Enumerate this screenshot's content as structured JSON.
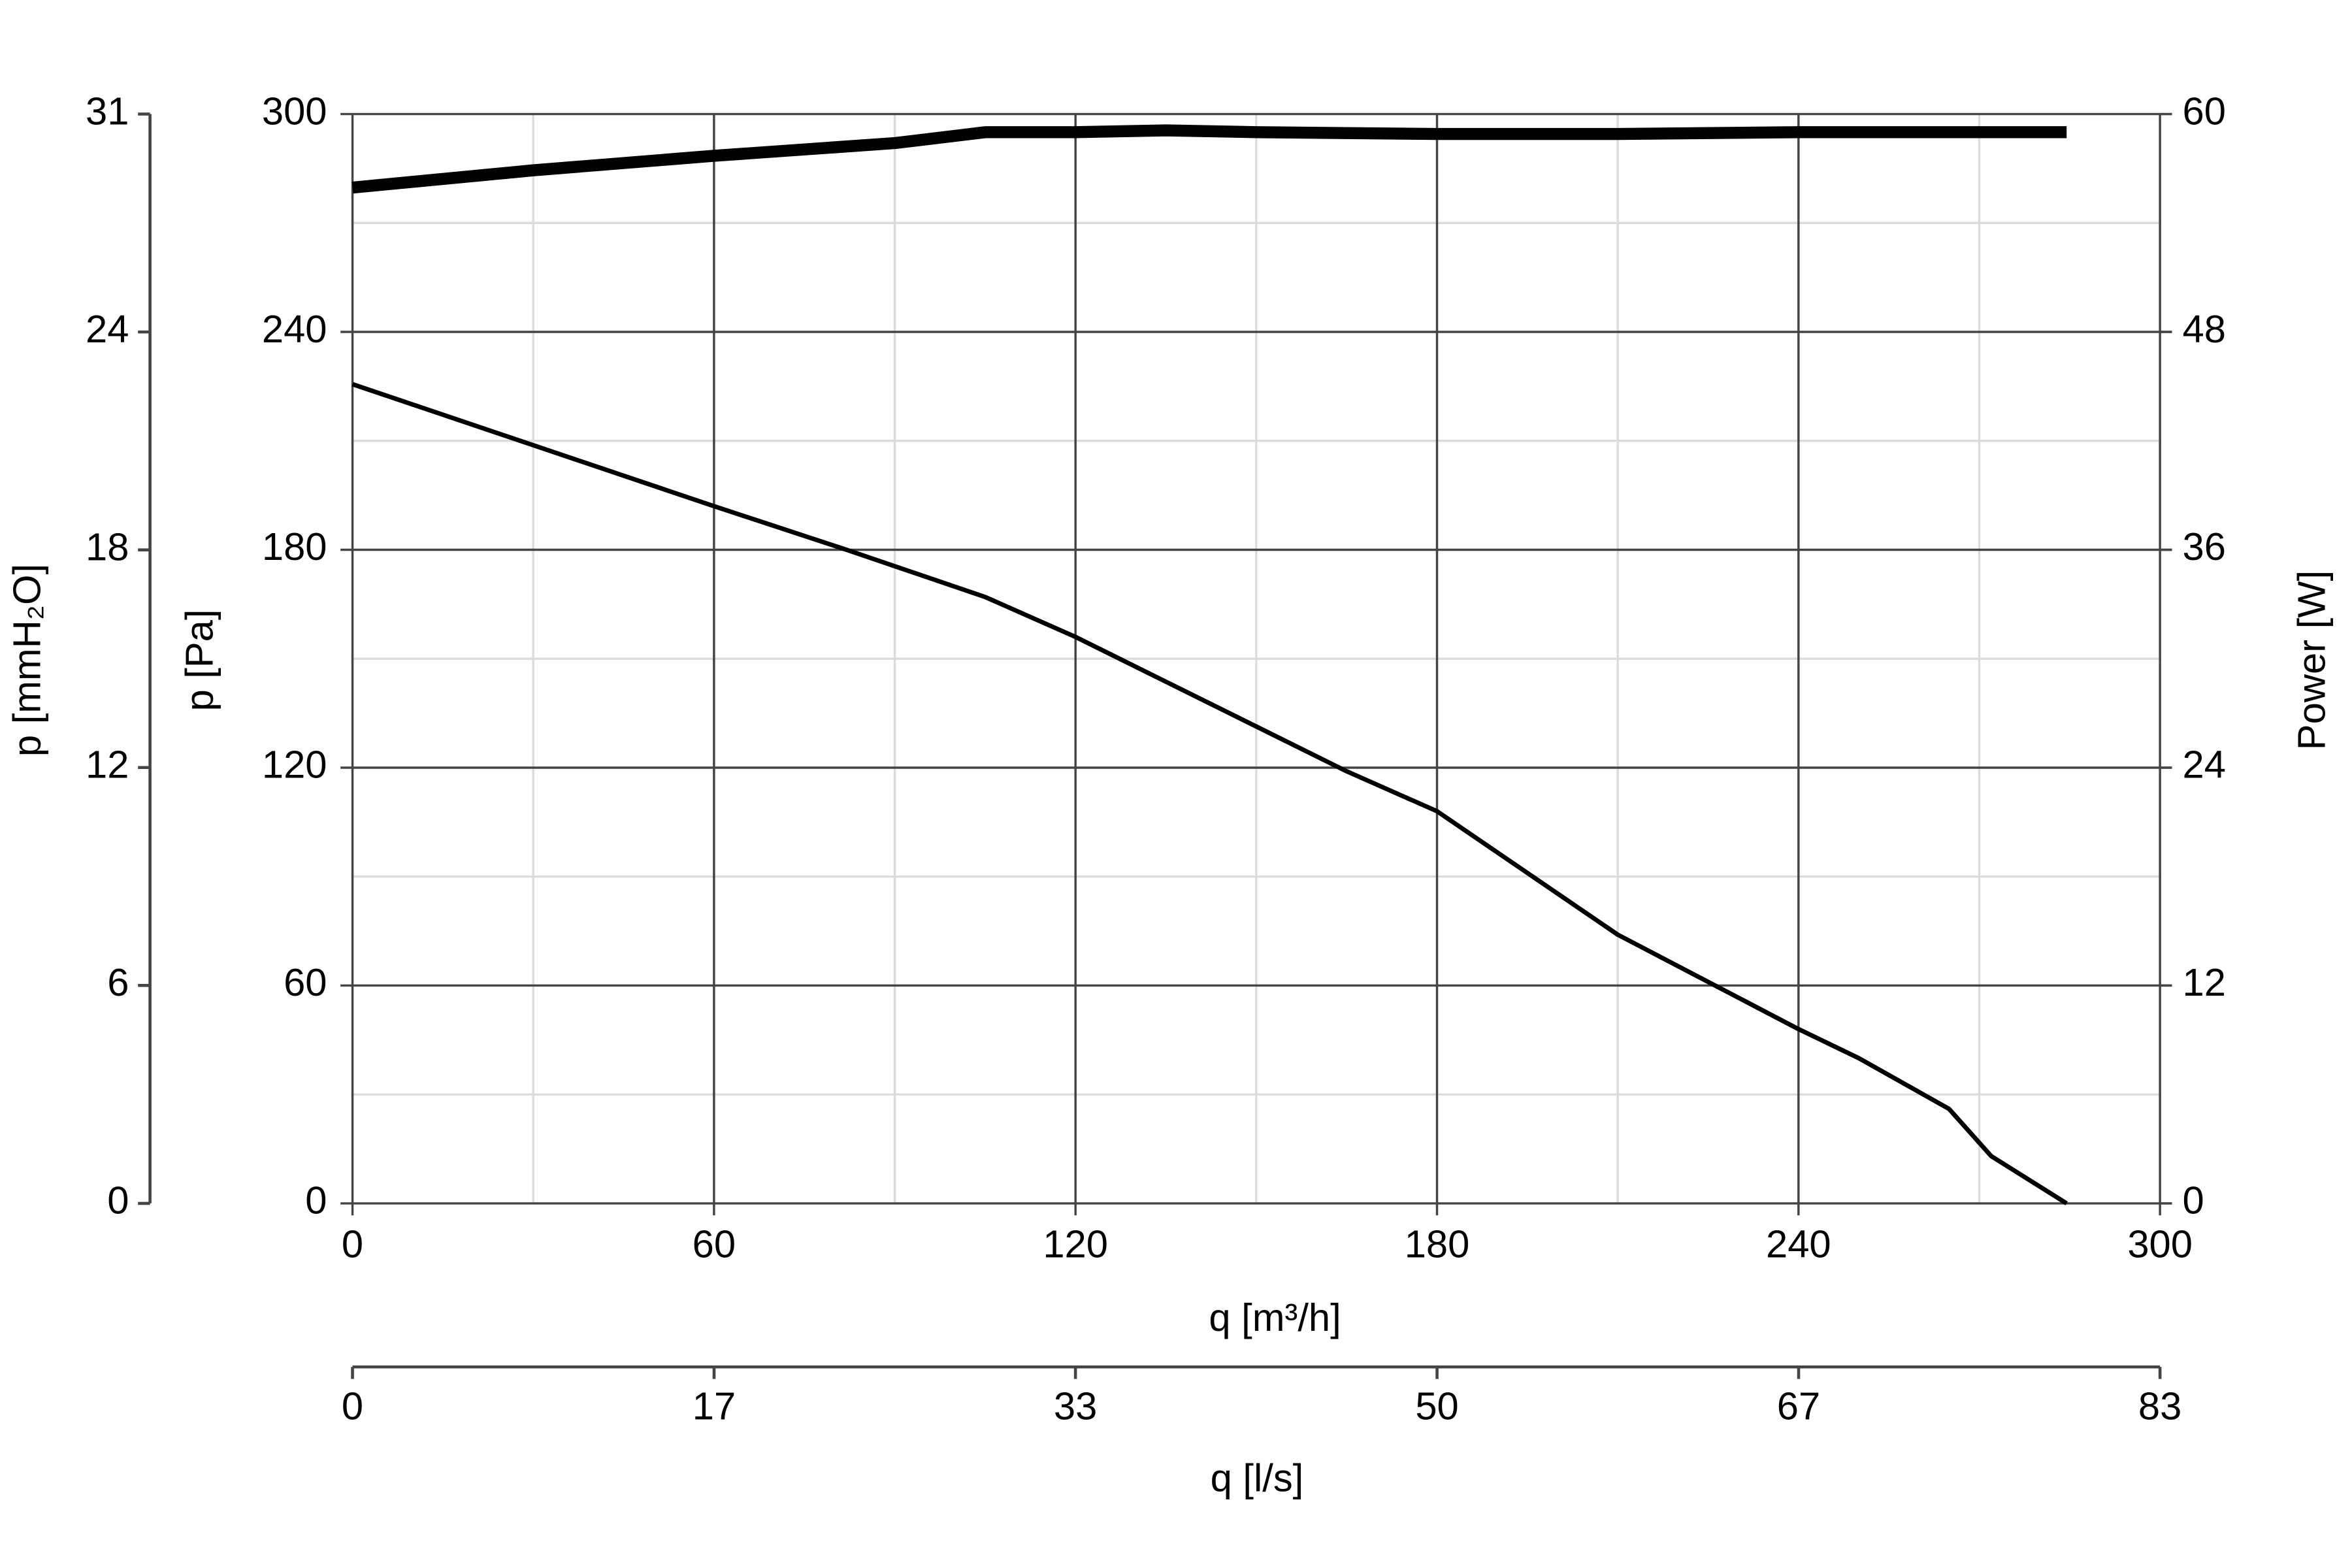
{
  "chart_data": {
    "type": "line",
    "x_label": "q [m³/h]",
    "x2_label": "q [l/s]",
    "y_label": "p [Pa]",
    "y3_label": "p [mmH₂O]",
    "y2_label": "Power [W]",
    "xlim": [
      0,
      300
    ],
    "xticks": [
      0,
      60,
      120,
      180,
      240,
      300
    ],
    "x_minor_ticks": [
      30,
      90,
      150,
      210,
      270
    ],
    "x2lim": [
      0,
      83.33
    ],
    "x2ticks": [
      0,
      {
        "value": 16.67,
        "label": "17"
      },
      {
        "value": 33.33,
        "label": "33"
      },
      50,
      {
        "value": 66.67,
        "label": "67"
      },
      {
        "value": 83.33,
        "label": "83"
      }
    ],
    "ylim": [
      0,
      300
    ],
    "yticks": [
      0,
      60,
      120,
      180,
      240,
      300
    ],
    "y_minor_ticks": [
      30,
      90,
      150,
      210,
      270
    ],
    "y3lim": [
      0,
      30.59
    ],
    "y3ticks": [
      0,
      {
        "value": 6.12,
        "label": "6"
      },
      {
        "value": 12.24,
        "label": "12"
      },
      {
        "value": 18.35,
        "label": "18"
      },
      {
        "value": 24.47,
        "label": "24"
      },
      {
        "value": 30.59,
        "label": "31"
      }
    ],
    "y2lim": [
      0,
      60
    ],
    "y2ticks": [
      0,
      12,
      24,
      36,
      48,
      60
    ],
    "grid": true,
    "series": [
      {
        "color": "#000000",
        "width": 3,
        "x": [
          0,
          60,
          82,
          105,
          120,
          165,
          180,
          210,
          240,
          250,
          265,
          272,
          284.5
        ],
        "values": [
          225.6,
          192,
          180,
          167,
          156,
          119,
          108,
          74,
          48,
          40,
          26,
          13,
          0
        ]
      },
      {
        "color": "#000000",
        "width": 8,
        "axis": "y2",
        "x": [
          0,
          30,
          60,
          90,
          105,
          120,
          135,
          150,
          180,
          210,
          240,
          284.5
        ],
        "values": [
          55.95,
          56.9,
          57.7,
          58.4,
          59.0,
          59.0,
          59.1,
          59.0,
          58.9,
          58.9,
          59.0,
          59.0
        ]
      }
    ]
  }
}
